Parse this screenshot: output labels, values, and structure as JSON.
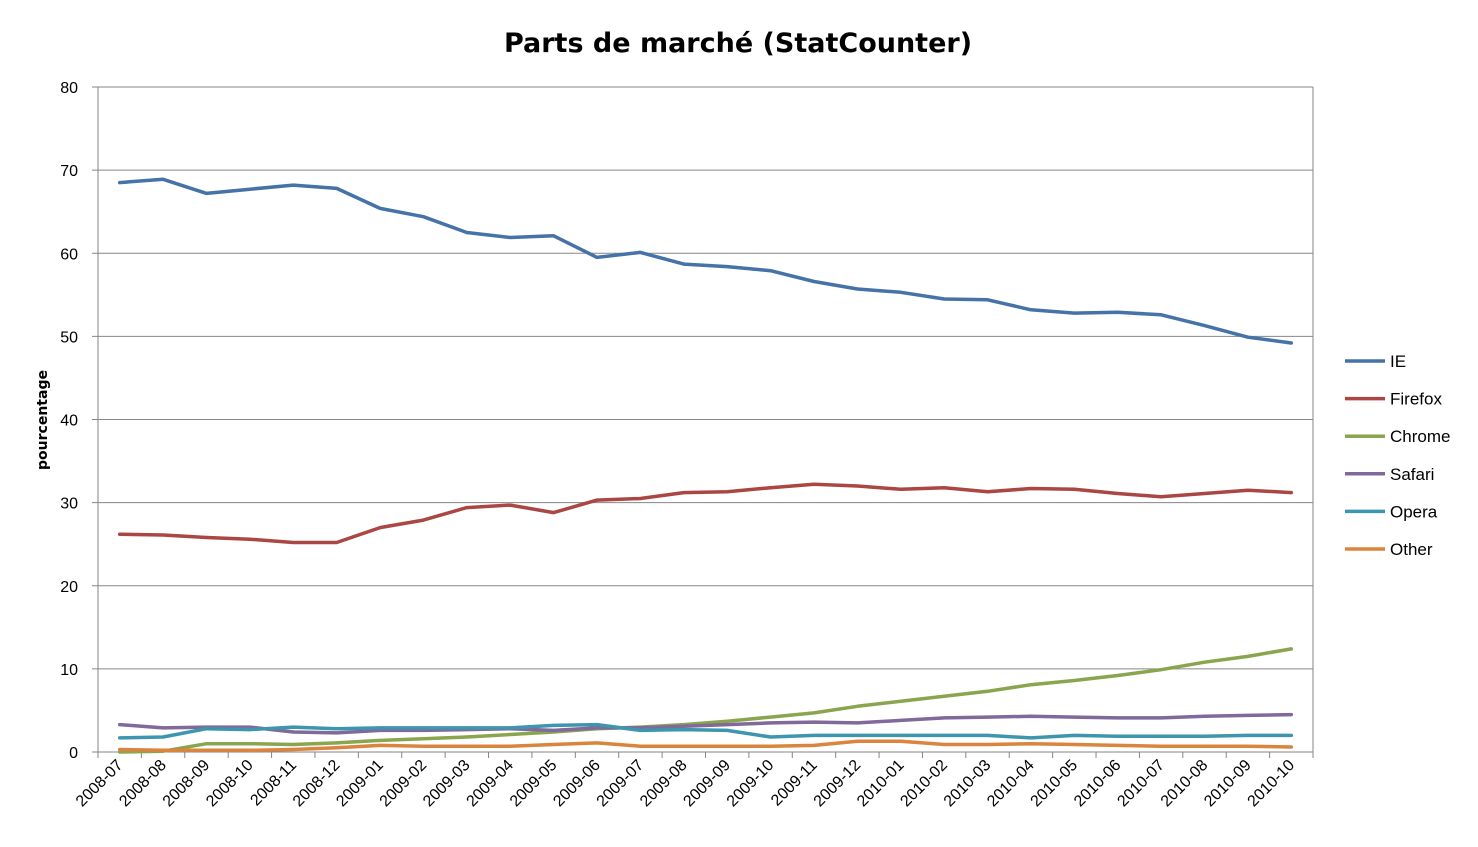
{
  "chart_data": {
    "type": "line",
    "title": "Parts de marché (StatCounter)",
    "xlabel": "",
    "ylabel": "pourcentage",
    "ylim": [
      0,
      80
    ],
    "yticks": [
      "0",
      "10",
      "20",
      "30",
      "40",
      "50",
      "60",
      "70",
      "80"
    ],
    "grid": true,
    "legend_position": "right",
    "categories": [
      "2008-07",
      "2008-08",
      "2008-09",
      "2008-10",
      "2008-11",
      "2008-12",
      "2009-01",
      "2009-02",
      "2009-03",
      "2009-04",
      "2009-05",
      "2009-06",
      "2009-07",
      "2009-08",
      "2009-09",
      "2009-10",
      "2009-11",
      "2009-12",
      "2010-01",
      "2010-02",
      "2010-03",
      "2010-04",
      "2010-05",
      "2010-06",
      "2010-07",
      "2010-08",
      "2010-09",
      "2010-10"
    ],
    "series": [
      {
        "name": "IE",
        "color": "#4572A7",
        "values": [
          68.5,
          68.9,
          67.2,
          67.7,
          68.2,
          67.8,
          65.4,
          64.4,
          62.5,
          61.9,
          62.1,
          59.5,
          60.1,
          58.7,
          58.4,
          57.9,
          56.6,
          55.7,
          55.3,
          54.5,
          54.4,
          53.2,
          52.8,
          52.9,
          52.6,
          51.3,
          49.9,
          49.2
        ]
      },
      {
        "name": "Firefox",
        "color": "#AA4643",
        "values": [
          26.2,
          26.1,
          25.8,
          25.6,
          25.2,
          25.2,
          27.0,
          27.9,
          29.4,
          29.7,
          28.8,
          30.3,
          30.5,
          31.2,
          31.3,
          31.8,
          32.2,
          32.0,
          31.6,
          31.8,
          31.3,
          31.7,
          31.6,
          31.1,
          30.7,
          31.1,
          31.5,
          31.2
        ]
      },
      {
        "name": "Chrome",
        "color": "#89A54E",
        "values": [
          0.0,
          0.1,
          1.0,
          1.0,
          0.9,
          1.1,
          1.4,
          1.6,
          1.8,
          2.1,
          2.4,
          2.8,
          3.0,
          3.3,
          3.7,
          4.2,
          4.7,
          5.5,
          6.1,
          6.7,
          7.3,
          8.1,
          8.6,
          9.2,
          9.9,
          10.8,
          11.5,
          12.4
        ]
      },
      {
        "name": "Safari",
        "color": "#80699B",
        "values": [
          3.3,
          2.9,
          3.0,
          3.0,
          2.4,
          2.3,
          2.6,
          2.6,
          2.7,
          2.8,
          2.6,
          2.9,
          2.9,
          3.1,
          3.3,
          3.5,
          3.6,
          3.5,
          3.8,
          4.1,
          4.2,
          4.3,
          4.2,
          4.1,
          4.1,
          4.3,
          4.4,
          4.5
        ]
      },
      {
        "name": "Opera",
        "color": "#3D96AE",
        "values": [
          1.7,
          1.8,
          2.8,
          2.7,
          3.0,
          2.8,
          2.9,
          2.9,
          2.9,
          2.9,
          3.2,
          3.3,
          2.6,
          2.7,
          2.6,
          1.8,
          2.0,
          2.0,
          2.0,
          2.0,
          2.0,
          1.7,
          2.0,
          1.9,
          1.9,
          1.9,
          2.0,
          2.0
        ]
      },
      {
        "name": "Other",
        "color": "#DB843D",
        "values": [
          0.3,
          0.2,
          0.2,
          0.2,
          0.3,
          0.5,
          0.8,
          0.7,
          0.7,
          0.7,
          0.9,
          1.1,
          0.7,
          0.7,
          0.7,
          0.7,
          0.8,
          1.3,
          1.3,
          0.9,
          0.9,
          1.0,
          0.9,
          0.8,
          0.7,
          0.7,
          0.7,
          0.6
        ]
      }
    ]
  },
  "colors": {
    "grid": "#868686",
    "axis": "#868686",
    "background": "#ffffff"
  }
}
